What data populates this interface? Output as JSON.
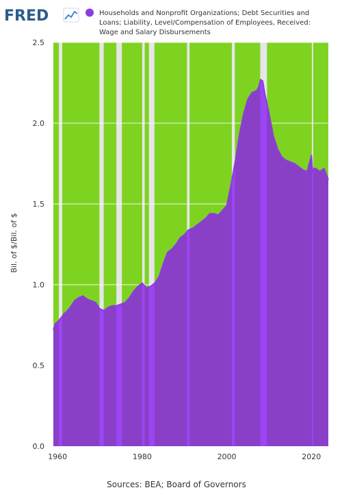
{
  "branding": {
    "logo_text": "FRED"
  },
  "chart_data": {
    "type": "area",
    "legend": [
      "Households and Nonprofit Organizations; Debt Securities and",
      "Loans; Liability, Level/Compensation of Employees, Received:",
      "Wage and Salary Disbursements"
    ],
    "series": [
      {
        "name": "Households and Nonprofit Organizations; Debt Securities and Loans; Liability, Level/Compensation of Employees, Received: Wage and Salary Disbursements",
        "color": "#8a3fc7"
      }
    ],
    "x": [
      1959,
      1959.5,
      1960,
      1961,
      1961.5,
      1962,
      1963,
      1964,
      1965,
      1966,
      1967,
      1968,
      1969,
      1970,
      1971,
      1972,
      1973,
      1974,
      1975,
      1976,
      1977,
      1978,
      1979,
      1980,
      1981,
      1982,
      1983,
      1984,
      1985,
      1986,
      1987,
      1988,
      1989,
      1990,
      1991,
      1992,
      1993,
      1994,
      1995,
      1996,
      1997,
      1998,
      1999,
      2000,
      2001,
      2002,
      2003,
      2004,
      2005,
      2006,
      2007,
      2007.5,
      2008,
      2008.5,
      2009,
      2010,
      2011,
      2012,
      2013,
      2014,
      2015,
      2016,
      2017,
      2018,
      2019,
      2020,
      2020.3,
      2020.6,
      2021,
      2022,
      2023,
      2024
    ],
    "values": [
      0.72,
      0.76,
      0.77,
      0.8,
      0.82,
      0.83,
      0.86,
      0.9,
      0.92,
      0.93,
      0.91,
      0.9,
      0.89,
      0.85,
      0.84,
      0.86,
      0.87,
      0.87,
      0.88,
      0.89,
      0.92,
      0.96,
      0.99,
      1.01,
      0.98,
      0.99,
      1.01,
      1.05,
      1.13,
      1.2,
      1.22,
      1.25,
      1.29,
      1.31,
      1.34,
      1.35,
      1.37,
      1.39,
      1.41,
      1.44,
      1.44,
      1.43,
      1.46,
      1.49,
      1.62,
      1.76,
      1.93,
      2.06,
      2.15,
      2.19,
      2.2,
      2.22,
      2.27,
      2.26,
      2.18,
      2.06,
      1.92,
      1.84,
      1.79,
      1.77,
      1.76,
      1.75,
      1.73,
      1.71,
      1.7,
      1.8,
      1.69,
      1.72,
      1.72,
      1.7,
      1.72,
      1.65
    ],
    "recessions": [
      [
        1960.3,
        1961.1
      ],
      [
        1969.9,
        1970.9
      ],
      [
        1973.9,
        1975.2
      ],
      [
        1980.0,
        1980.6
      ],
      [
        1981.6,
        1982.9
      ],
      [
        1990.6,
        1991.2
      ],
      [
        2001.2,
        2001.9
      ],
      [
        2007.9,
        2009.5
      ],
      [
        2020.1,
        2020.4
      ]
    ],
    "xlim": [
      1959,
      2024
    ],
    "ylim": [
      0,
      2.5
    ],
    "xticks": [
      1960,
      1980,
      2000,
      2020
    ],
    "yticks": [
      "0.0",
      "0.5",
      "1.0",
      "1.5",
      "2.0",
      "2.5"
    ],
    "ylabel": "Bil. of $/Bil. of $",
    "source": "Sources: BEA; Board of Governors",
    "colors": {
      "plot_background": "#7ed321",
      "recession_shading": "#e6e6e6",
      "area_fill": "#8a3fc7",
      "line": "#8b3ee0",
      "recession_area": "#9b45f5"
    }
  }
}
